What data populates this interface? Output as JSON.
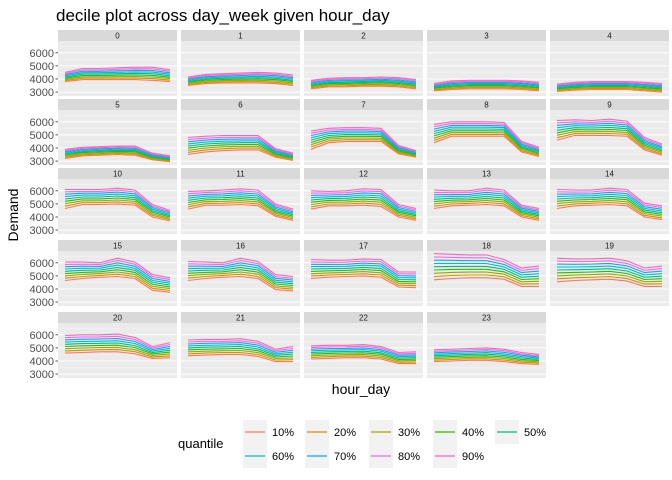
{
  "chart_data": {
    "type": "line",
    "title": "decile plot across day_week given hour_day",
    "xlabel": "hour_day",
    "ylabel": "Demand",
    "facet_variable": "hour_day",
    "panels": [
      "0",
      "1",
      "2",
      "3",
      "4",
      "5",
      "6",
      "7",
      "8",
      "9",
      "10",
      "11",
      "12",
      "13",
      "14",
      "15",
      "16",
      "17",
      "18",
      "19",
      "20",
      "21",
      "22",
      "23"
    ],
    "x": [
      1,
      2,
      3,
      4,
      5,
      6,
      7
    ],
    "ylim": [
      2700,
      6900
    ],
    "y_ticks": [
      3000,
      4000,
      5000,
      6000
    ],
    "y_tick_labels": [
      "3000",
      "4000",
      "5000",
      "6000"
    ],
    "grid": true,
    "legend": {
      "title": "quantile",
      "position": "bottom",
      "entries": [
        {
          "label": "10%",
          "color": "#F8766D"
        },
        {
          "label": "20%",
          "color": "#D89000"
        },
        {
          "label": "30%",
          "color": "#A3A500"
        },
        {
          "label": "40%",
          "color": "#39B600"
        },
        {
          "label": "50%",
          "color": "#00BF7D"
        },
        {
          "label": "60%",
          "color": "#00BFC4"
        },
        {
          "label": "70%",
          "color": "#00B0F6"
        },
        {
          "label": "80%",
          "color": "#E76BF3"
        },
        {
          "label": "90%",
          "color": "#FF62BC"
        }
      ]
    },
    "series_by_panel": {
      "0": {
        "q10": [
          3800,
          3950,
          3950,
          3950,
          3950,
          3900,
          3800
        ],
        "q90": [
          4500,
          4800,
          4800,
          4850,
          4900,
          4900,
          4700
        ]
      },
      "1": {
        "q10": [
          3500,
          3650,
          3700,
          3700,
          3700,
          3650,
          3500
        ],
        "q90": [
          4150,
          4350,
          4400,
          4450,
          4500,
          4450,
          4300
        ]
      },
      "2": {
        "q10": [
          3250,
          3400,
          3400,
          3450,
          3450,
          3400,
          3250
        ],
        "q90": [
          3900,
          4050,
          4100,
          4100,
          4150,
          4100,
          3950
        ]
      },
      "3": {
        "q10": [
          3100,
          3200,
          3250,
          3250,
          3250,
          3200,
          3100
        ],
        "q90": [
          3650,
          3850,
          3900,
          3900,
          3900,
          3850,
          3750
        ]
      },
      "4": {
        "q10": [
          3050,
          3150,
          3200,
          3200,
          3200,
          3100,
          3000
        ],
        "q90": [
          3600,
          3750,
          3800,
          3800,
          3800,
          3750,
          3650
        ]
      },
      "5": {
        "q10": [
          3200,
          3400,
          3450,
          3500,
          3450,
          3100,
          2950
        ],
        "q90": [
          3900,
          4050,
          4100,
          4150,
          4150,
          3600,
          3400
        ]
      },
      "6": {
        "q10": [
          3500,
          3700,
          3800,
          3850,
          3850,
          3300,
          3050
        ],
        "q90": [
          4800,
          4900,
          4950,
          4950,
          4950,
          3950,
          3600
        ]
      },
      "7": {
        "q10": [
          3900,
          4400,
          4500,
          4500,
          4500,
          3550,
          3300
        ],
        "q90": [
          5300,
          5500,
          5550,
          5550,
          5500,
          4200,
          3800
        ]
      },
      "8": {
        "q10": [
          4400,
          4900,
          4900,
          4900,
          4900,
          3700,
          3350
        ],
        "q90": [
          5800,
          6000,
          6000,
          6000,
          5950,
          4500,
          4050
        ]
      },
      "9": {
        "q10": [
          4600,
          4950,
          4950,
          4950,
          4900,
          3850,
          3450
        ],
        "q90": [
          6100,
          6150,
          6100,
          6200,
          6050,
          4800,
          4300
        ]
      },
      "10": {
        "q10": [
          4650,
          4950,
          4950,
          5000,
          4900,
          4000,
          3700
        ],
        "q90": [
          6100,
          6100,
          6100,
          6200,
          6050,
          4950,
          4500
        ]
      },
      "11": {
        "q10": [
          4600,
          4900,
          4900,
          4950,
          4850,
          4050,
          3750
        ],
        "q90": [
          5950,
          6000,
          6050,
          6150,
          6050,
          5000,
          4600
        ]
      },
      "12": {
        "q10": [
          4600,
          4850,
          4850,
          4900,
          4800,
          4000,
          3750
        ],
        "q90": [
          6000,
          5950,
          6000,
          6150,
          6100,
          4950,
          4650
        ]
      },
      "13": {
        "q10": [
          4650,
          4850,
          4900,
          4950,
          4850,
          4000,
          3750
        ],
        "q90": [
          6050,
          6000,
          6000,
          6200,
          6050,
          4900,
          4650
        ]
      },
      "14": {
        "q10": [
          4650,
          4850,
          4900,
          4950,
          4850,
          4000,
          3800
        ],
        "q90": [
          6100,
          6050,
          6050,
          6200,
          6100,
          5050,
          4850
        ]
      },
      "15": {
        "q10": [
          4650,
          4800,
          4900,
          4950,
          4800,
          3900,
          3750
        ],
        "q90": [
          6050,
          6050,
          6000,
          6350,
          6050,
          5100,
          4850
        ]
      },
      "16": {
        "q10": [
          4650,
          4800,
          4900,
          4950,
          4800,
          3950,
          3850
        ],
        "q90": [
          6100,
          6050,
          6000,
          6350,
          6100,
          5100,
          4950
        ]
      },
      "17": {
        "q10": [
          4800,
          4900,
          4950,
          5000,
          4900,
          4150,
          4100
        ],
        "q90": [
          6250,
          6200,
          6200,
          6300,
          6250,
          5300,
          5300
        ]
      },
      "18": {
        "q10": [
          4700,
          4800,
          4850,
          4850,
          4750,
          4200,
          4200
        ],
        "q90": [
          6700,
          6650,
          6600,
          6600,
          6250,
          5600,
          5750
        ]
      },
      "19": {
        "q10": [
          4550,
          4650,
          4700,
          4750,
          4600,
          4200,
          4200
        ],
        "q90": [
          6350,
          6300,
          6300,
          6350,
          6150,
          5600,
          5750
        ]
      },
      "20": {
        "q10": [
          4600,
          4650,
          4700,
          4700,
          4550,
          4200,
          4250
        ],
        "q90": [
          5950,
          6000,
          6000,
          6050,
          5800,
          5100,
          5400
        ]
      },
      "21": {
        "q10": [
          4400,
          4450,
          4500,
          4500,
          4350,
          3950,
          3950
        ],
        "q90": [
          5600,
          5650,
          5650,
          5700,
          5500,
          4900,
          5100
        ]
      },
      "22": {
        "q10": [
          4150,
          4200,
          4250,
          4250,
          4150,
          3800,
          3800
        ],
        "q90": [
          5150,
          5200,
          5200,
          5250,
          5100,
          4650,
          4700
        ]
      },
      "23": {
        "q10": [
          3950,
          4000,
          4050,
          4050,
          3950,
          3800,
          3750
        ],
        "q90": [
          4850,
          4900,
          4950,
          5000,
          4900,
          4650,
          4500
        ]
      }
    }
  }
}
